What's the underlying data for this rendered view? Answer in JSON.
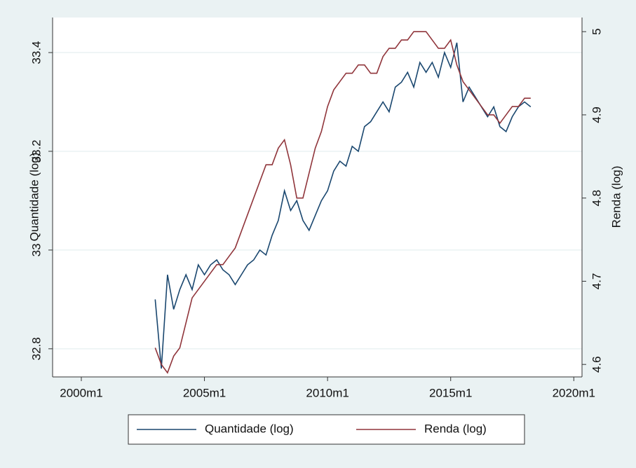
{
  "chart_data": {
    "type": "line",
    "x": [
      516,
      519,
      522,
      525,
      528,
      531,
      534,
      537,
      540,
      543,
      546,
      549,
      552,
      555,
      558,
      561,
      564,
      567,
      570,
      573,
      576,
      579,
      582,
      585,
      588,
      591,
      594,
      597,
      600,
      603,
      606,
      609,
      612,
      615,
      618,
      621,
      624,
      627,
      630,
      633,
      636,
      639,
      642,
      645,
      648,
      651,
      654,
      657,
      660,
      663,
      666,
      669,
      672,
      675,
      678,
      681,
      684,
      687,
      690,
      693,
      696,
      699
    ],
    "series": [
      {
        "name": "Quantidade (log)",
        "color": "#1a476f",
        "axis": "y",
        "values": [
          32.9,
          32.76,
          32.95,
          32.88,
          32.92,
          32.95,
          32.92,
          32.97,
          32.95,
          32.97,
          32.98,
          32.96,
          32.95,
          32.93,
          32.95,
          32.97,
          32.98,
          33.0,
          32.99,
          33.03,
          33.06,
          33.12,
          33.08,
          33.1,
          33.06,
          33.04,
          33.07,
          33.1,
          33.12,
          33.16,
          33.18,
          33.17,
          33.21,
          33.2,
          33.25,
          33.26,
          33.28,
          33.3,
          33.28,
          33.33,
          33.34,
          33.36,
          33.33,
          33.38,
          33.36,
          33.38,
          33.35,
          33.4,
          33.37,
          33.42,
          33.3,
          33.33,
          33.31,
          33.29,
          33.27,
          33.29,
          33.25,
          33.24,
          33.27,
          33.29,
          33.3,
          33.29
        ]
      },
      {
        "name": "Renda (log)",
        "color": "#90353b",
        "axis": "y2",
        "values": [
          4.62,
          4.6,
          4.59,
          4.61,
          4.62,
          4.65,
          4.68,
          4.69,
          4.7,
          4.71,
          4.72,
          4.72,
          4.73,
          4.74,
          4.76,
          4.78,
          4.8,
          4.82,
          4.84,
          4.84,
          4.86,
          4.87,
          4.84,
          4.8,
          4.8,
          4.83,
          4.86,
          4.88,
          4.91,
          4.93,
          4.94,
          4.95,
          4.95,
          4.96,
          4.96,
          4.95,
          4.95,
          4.97,
          4.98,
          4.98,
          4.99,
          4.99,
          5.0,
          5.0,
          5.0,
          4.99,
          4.98,
          4.98,
          4.99,
          4.96,
          4.94,
          4.93,
          4.92,
          4.91,
          4.9,
          4.9,
          4.89,
          4.9,
          4.91,
          4.91,
          4.92,
          4.92
        ]
      }
    ],
    "xlim": [
      466,
      724
    ],
    "xticks": [
      {
        "value": 480,
        "label": "2000m1"
      },
      {
        "value": 540,
        "label": "2005m1"
      },
      {
        "value": 600,
        "label": "2010m1"
      },
      {
        "value": 660,
        "label": "2015m1"
      },
      {
        "value": 720,
        "label": "2020m1"
      }
    ],
    "ylim": [
      32.743,
      33.471
    ],
    "yticks": [
      32.8,
      33,
      33.2,
      33.4
    ],
    "y2lim": [
      4.585,
      5.017
    ],
    "y2ticks": [
      4.6,
      4.7,
      4.8,
      4.9,
      5
    ],
    "ylabel": "Quantidade (log)",
    "y2label": "Renda (log)",
    "grid": true,
    "legend": "bottom"
  }
}
